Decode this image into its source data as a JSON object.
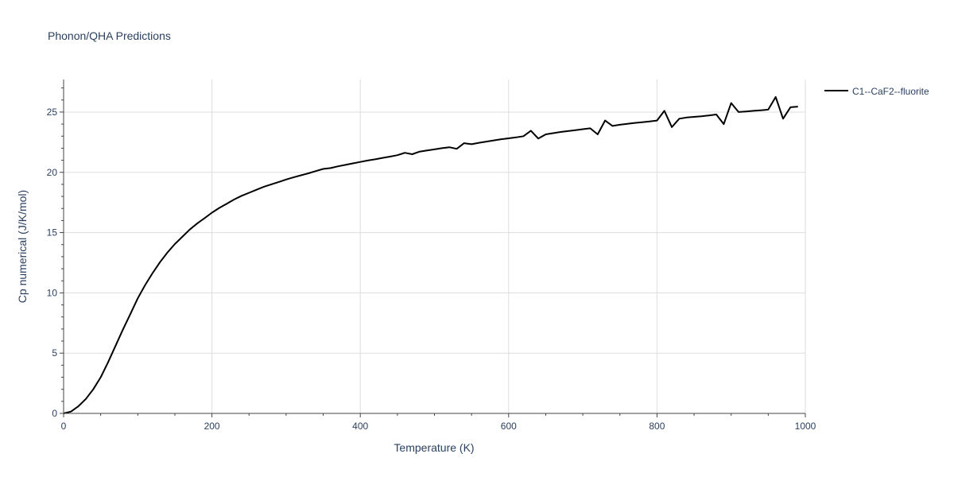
{
  "chart_data": {
    "type": "line",
    "title": "Phonon/QHA Predictions",
    "xlabel": "Temperature (K)",
    "ylabel": "Cp numerical (J/K/mol)",
    "xlim": [
      0,
      1000
    ],
    "ylim": [
      0,
      27.7
    ],
    "x_ticks": [
      0,
      200,
      400,
      600,
      800,
      1000
    ],
    "y_ticks": [
      0,
      5,
      10,
      15,
      20,
      25
    ],
    "x_tick_labels": [
      "0",
      "200",
      "400",
      "600",
      "800",
      "1000"
    ],
    "y_tick_labels": [
      "0",
      "5",
      "10",
      "15",
      "20",
      "25"
    ],
    "grid": true,
    "legend_position": "top-right",
    "series": [
      {
        "name": "C1--CaF2--fluorite",
        "color": "#000000",
        "x": [
          0,
          10,
          20,
          30,
          40,
          50,
          60,
          70,
          80,
          90,
          100,
          110,
          120,
          130,
          140,
          150,
          160,
          170,
          180,
          190,
          200,
          210,
          220,
          230,
          240,
          250,
          260,
          270,
          280,
          290,
          300,
          310,
          320,
          330,
          340,
          350,
          360,
          370,
          380,
          390,
          400,
          410,
          420,
          430,
          440,
          450,
          460,
          470,
          480,
          490,
          500,
          510,
          520,
          530,
          540,
          550,
          560,
          570,
          580,
          590,
          600,
          610,
          620,
          630,
          640,
          650,
          660,
          670,
          680,
          690,
          700,
          710,
          720,
          730,
          740,
          750,
          760,
          770,
          780,
          790,
          800,
          810,
          820,
          830,
          840,
          850,
          860,
          870,
          880,
          890,
          900,
          910,
          920,
          930,
          940,
          950,
          960,
          970,
          980,
          990
        ],
        "y": [
          0.0,
          0.15,
          0.6,
          1.2,
          2.0,
          3.0,
          4.25,
          5.6,
          6.95,
          8.25,
          9.55,
          10.65,
          11.65,
          12.55,
          13.35,
          14.05,
          14.65,
          15.25,
          15.75,
          16.2,
          16.65,
          17.05,
          17.4,
          17.75,
          18.05,
          18.3,
          18.55,
          18.8,
          19.0,
          19.2,
          19.4,
          19.58,
          19.75,
          19.92,
          20.1,
          20.28,
          20.35,
          20.5,
          20.62,
          20.74,
          20.86,
          20.98,
          21.08,
          21.2,
          21.3,
          21.42,
          21.62,
          21.5,
          21.72,
          21.82,
          21.9,
          22.0,
          22.08,
          21.95,
          22.42,
          22.33,
          22.45,
          22.55,
          22.65,
          22.75,
          22.82,
          22.9,
          23.0,
          23.45,
          22.8,
          23.15,
          23.25,
          23.35,
          23.42,
          23.5,
          23.58,
          23.65,
          23.15,
          24.3,
          23.85,
          23.95,
          24.02,
          24.1,
          24.15,
          24.22,
          24.3,
          25.1,
          23.75,
          24.45,
          24.55,
          24.6,
          24.65,
          24.72,
          24.8,
          24.0,
          25.75,
          25.0,
          25.05,
          25.1,
          25.15,
          25.2,
          26.25,
          24.45,
          25.4,
          25.45
        ]
      }
    ]
  }
}
